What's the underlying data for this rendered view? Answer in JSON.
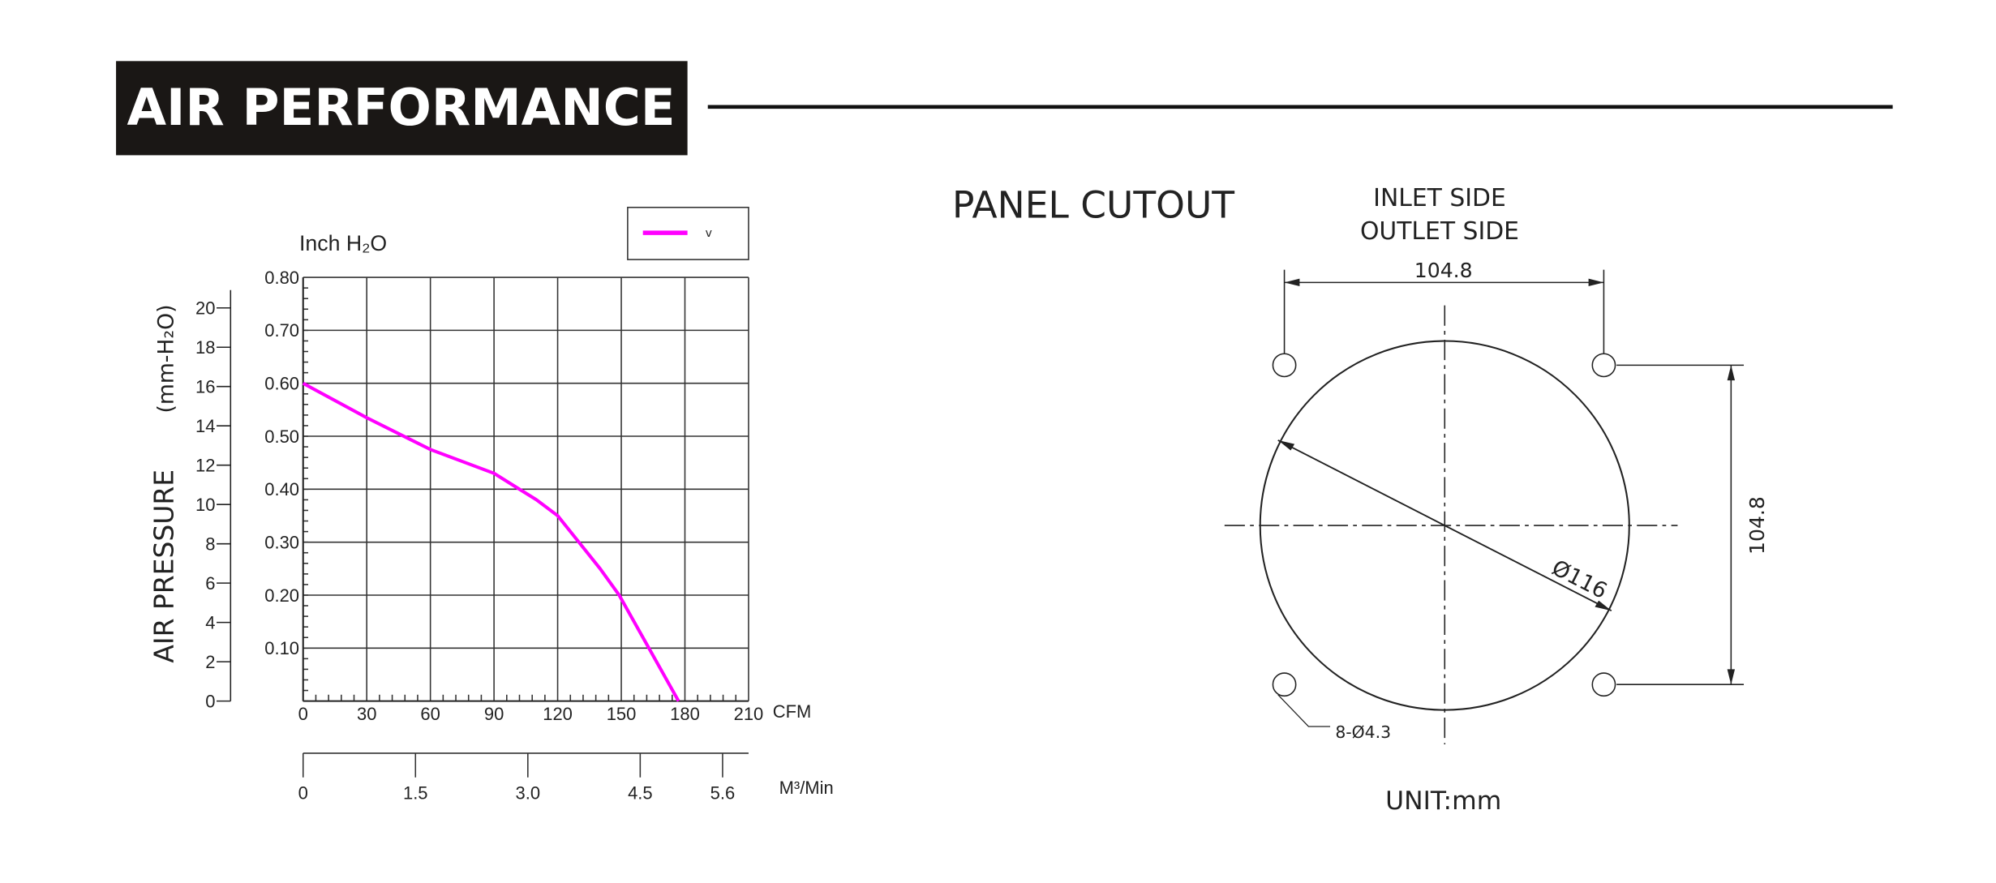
{
  "header": {
    "title": "AIR PERFORMANCE"
  },
  "chart_data": {
    "type": "line",
    "title": "",
    "y_unit_label": "Inch H₂O",
    "ylabel": "AIR PRESSURE",
    "ylabel_secondary": "(mm-H₂O)",
    "xlabel": "CFM",
    "xlabel_secondary": "M³/Min",
    "xlim": [
      0,
      210
    ],
    "ylim": [
      0,
      0.8
    ],
    "x_ticks": [
      "0",
      "30",
      "60",
      "90",
      "120",
      "150",
      "180",
      "210"
    ],
    "y_ticks": [
      "0.10",
      "0.20",
      "0.30",
      "0.40",
      "0.50",
      "0.60",
      "0.70",
      "0.80"
    ],
    "y_secondary_ticks": [
      "0",
      "2",
      "4",
      "6",
      "8",
      "10",
      "12",
      "14",
      "16",
      "18",
      "20"
    ],
    "x_secondary_ticks": [
      "0",
      "1.5",
      "3.0",
      "4.5",
      "5.6"
    ],
    "grid": true,
    "legend_position": "top-right",
    "series": [
      {
        "name": "v",
        "color": "#ff00ff",
        "x": [
          0,
          30,
          60,
          90,
          102,
          110,
          120,
          130,
          140,
          149,
          163,
          177
        ],
        "y": [
          0.6,
          0.535,
          0.475,
          0.43,
          0.4,
          0.38,
          0.35,
          0.3,
          0.25,
          0.2,
          0.1,
          0.0
        ]
      }
    ]
  },
  "panel": {
    "title": "PANEL CUTOUT",
    "inlet": "INLET SIDE",
    "outlet": "OUTLET SIDE",
    "dim_horizontal": "104.8",
    "dim_vertical": "104.8",
    "diameter": "Ø116",
    "holes": "8-Ø4.3",
    "unit": "UNIT:mm"
  }
}
